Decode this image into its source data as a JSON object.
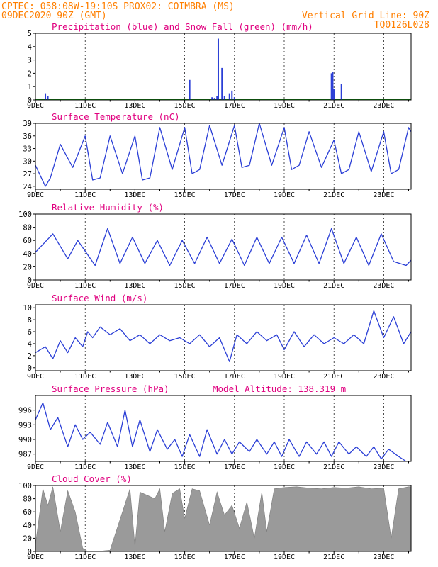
{
  "header": {
    "line1_left": "CPTEC:  058:08W-19:10S  PROX02: COIMBRA (MS)",
    "line2_left": "09DEC2020 90Z (GMT)",
    "line2_right": "Vertical Grid Line: 90Z",
    "line3_right": "TQ0126L028"
  },
  "colors": {
    "header": "#ff7f00",
    "panel_title": "#e0007f",
    "line": "#2b3fd6",
    "snow": "#1a9a1a",
    "cloud": "#9a9a9a"
  },
  "x_axis": {
    "day_labels": [
      "9DEC",
      "11DEC",
      "13DEC",
      "15DEC",
      "17DEC",
      "19DEC",
      "21DEC",
      "23DEC"
    ],
    "day_label_positions": [
      0,
      2,
      4,
      6,
      8,
      10,
      12,
      14
    ],
    "range_days": [
      0,
      15.1
    ]
  },
  "chart_data": [
    {
      "id": "precip",
      "type": "bar",
      "title": "Precipitation (blue) and Snow Fall (green) (mm/h)",
      "ylim": [
        0,
        5
      ],
      "yticks": [
        0,
        1,
        2,
        3,
        4,
        5
      ],
      "x": [
        0.4,
        0.5,
        6.2,
        7.1,
        7.2,
        7.3,
        7.35,
        7.5,
        7.6,
        7.8,
        7.9,
        8.0,
        11.9,
        11.95,
        12.0,
        12.3
      ],
      "values": [
        0.5,
        0.3,
        1.5,
        0.2,
        0.15,
        0.3,
        4.6,
        2.4,
        0.3,
        0.5,
        0.7,
        0.2,
        2.0,
        2.1,
        0.8,
        1.2
      ],
      "snow": 0
    },
    {
      "id": "temp",
      "type": "line",
      "title": "Surface Temperature (nC)",
      "ylim": [
        23.3,
        39
      ],
      "yticks": [
        24,
        27,
        30,
        33,
        36,
        39
      ],
      "x": [
        0,
        0.4,
        0.6,
        1.0,
        1.5,
        2.0,
        2.3,
        2.6,
        3.0,
        3.5,
        4.0,
        4.3,
        4.6,
        5.0,
        5.5,
        6.0,
        6.3,
        6.6,
        7.0,
        7.5,
        8.0,
        8.3,
        8.6,
        9.0,
        9.5,
        10.0,
        10.3,
        10.6,
        11.0,
        11.5,
        12.0,
        12.3,
        12.6,
        13.0,
        13.5,
        14.0,
        14.3,
        14.6,
        15.0,
        15.1
      ],
      "values": [
        29,
        24,
        26,
        34,
        28.5,
        36,
        25.5,
        26,
        36,
        27,
        36,
        25.5,
        26,
        38,
        28,
        38,
        27,
        28,
        38.5,
        29,
        38.5,
        28.5,
        29,
        39,
        29,
        38,
        28,
        29,
        37,
        28.5,
        35,
        27,
        28,
        37,
        27.5,
        37,
        27,
        28,
        38,
        37
      ]
    },
    {
      "id": "rh",
      "type": "line",
      "title": "Relative Humidity (%)",
      "ylim": [
        0,
        100
      ],
      "yticks": [
        0,
        20,
        40,
        60,
        80,
        100
      ],
      "x": [
        0,
        0.7,
        1.3,
        1.7,
        2.4,
        2.9,
        3.4,
        3.9,
        4.4,
        4.9,
        5.4,
        5.9,
        6.4,
        6.9,
        7.4,
        7.9,
        8.4,
        8.9,
        9.4,
        9.9,
        10.4,
        10.9,
        11.4,
        11.9,
        12.4,
        12.9,
        13.4,
        13.9,
        14.4,
        14.9,
        15.1
      ],
      "values": [
        42,
        70,
        32,
        60,
        22,
        78,
        25,
        65,
        25,
        60,
        22,
        60,
        25,
        65,
        25,
        62,
        22,
        65,
        25,
        65,
        25,
        68,
        25,
        78,
        25,
        65,
        22,
        70,
        28,
        22,
        30
      ]
    },
    {
      "id": "wind",
      "type": "line",
      "title": "Surface Wind (m/s)",
      "ylim": [
        -0.5,
        10.5
      ],
      "yticks": [
        0,
        2,
        4,
        6,
        8,
        10
      ],
      "x": [
        0,
        0.4,
        0.7,
        1.0,
        1.3,
        1.6,
        1.9,
        2.1,
        2.3,
        2.6,
        3.0,
        3.4,
        3.8,
        4.2,
        4.6,
        5.0,
        5.4,
        5.8,
        6.2,
        6.6,
        7.0,
        7.4,
        7.8,
        8.1,
        8.5,
        8.9,
        9.3,
        9.7,
        10.0,
        10.4,
        10.8,
        11.2,
        11.6,
        12.0,
        12.4,
        12.8,
        13.2,
        13.6,
        14.0,
        14.4,
        14.8,
        15.1
      ],
      "values": [
        2.5,
        3.5,
        1.5,
        4.5,
        2.5,
        5.0,
        3.5,
        6.0,
        5.0,
        6.8,
        5.5,
        6.5,
        4.5,
        5.5,
        4.0,
        5.5,
        4.5,
        5.0,
        4.0,
        5.5,
        3.5,
        5.0,
        1.0,
        5.5,
        4.0,
        6.0,
        4.5,
        5.5,
        3.0,
        6.0,
        3.5,
        5.5,
        4.0,
        5.0,
        4.0,
        5.5,
        4.0,
        9.5,
        5.0,
        8.5,
        4.0,
        6.0
      ]
    },
    {
      "id": "press",
      "type": "line",
      "title": "Surface Pressure (hPa)",
      "annotation": "Model Altitude: 138.319 m",
      "ylim": [
        985.5,
        999
      ],
      "yticks": [
        987,
        990,
        993,
        996
      ],
      "x": [
        0,
        0.3,
        0.6,
        0.9,
        1.3,
        1.6,
        1.9,
        2.2,
        2.6,
        2.9,
        3.3,
        3.6,
        3.9,
        4.2,
        4.6,
        4.9,
        5.3,
        5.6,
        5.9,
        6.2,
        6.6,
        6.9,
        7.3,
        7.6,
        7.9,
        8.2,
        8.6,
        8.9,
        9.3,
        9.6,
        9.9,
        10.2,
        10.6,
        10.9,
        11.3,
        11.6,
        11.9,
        12.2,
        12.6,
        12.9,
        13.3,
        13.6,
        13.9,
        14.2,
        14.6,
        14.9
      ],
      "values": [
        994,
        997.5,
        992,
        994.5,
        988.5,
        993,
        990,
        991.5,
        989,
        993.5,
        988.5,
        996,
        988.5,
        994,
        987.5,
        992,
        988,
        990,
        986.5,
        991,
        986.5,
        992,
        987,
        990,
        987,
        989.5,
        987.5,
        990,
        987,
        989.5,
        986.5,
        990,
        986.5,
        989.5,
        987,
        989.5,
        986.5,
        989.5,
        987,
        988.5,
        986.5,
        988.5,
        986,
        988,
        986.5,
        985
      ]
    },
    {
      "id": "cloud",
      "type": "area",
      "title": "Cloud Cover (%)",
      "ylim": [
        0,
        100
      ],
      "yticks": [
        0,
        20,
        40,
        60,
        80,
        100
      ],
      "x": [
        0,
        0.3,
        0.5,
        0.7,
        1.0,
        1.3,
        1.6,
        1.9,
        2.1,
        2.5,
        3.0,
        3.5,
        3.8,
        4.0,
        4.2,
        4.5,
        4.8,
        5.0,
        5.2,
        5.5,
        5.8,
        6.0,
        6.3,
        6.6,
        7.0,
        7.3,
        7.6,
        7.9,
        8.2,
        8.5,
        8.8,
        9.1,
        9.3,
        9.6,
        10.0,
        10.5,
        11.0,
        11.5,
        12.0,
        12.5,
        13.0,
        13.5,
        14.0,
        14.3,
        14.6,
        15.0,
        15.1
      ],
      "values": [
        10,
        95,
        70,
        98,
        30,
        92,
        60,
        5,
        0,
        0,
        2,
        60,
        95,
        8,
        90,
        85,
        80,
        95,
        30,
        88,
        95,
        50,
        95,
        92,
        40,
        90,
        55,
        70,
        35,
        75,
        20,
        90,
        30,
        95,
        97,
        98,
        96,
        95,
        97,
        96,
        98,
        95,
        96,
        20,
        95,
        98,
        98
      ]
    }
  ]
}
